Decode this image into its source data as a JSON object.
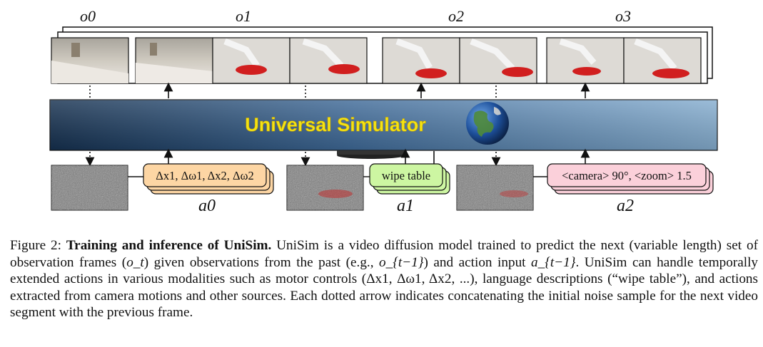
{
  "figure": {
    "frame_labels": [
      "o0",
      "o1",
      "o2",
      "o3"
    ],
    "simulator_label": "Universal Simulator",
    "action_boxes": {
      "motor": "Δx1, Δω1, Δx2, Δω2",
      "language": "wipe table",
      "camera": "<camera> 90°, <zoom> 1.5"
    },
    "action_labels": [
      "a0",
      "a1",
      "a2"
    ],
    "colors": {
      "simulator_gradient": [
        "#15304f",
        "#3f6a98",
        "#86aed0"
      ],
      "motor_box": "#fdd6a4",
      "language_box": "#cdf6a2",
      "camera_box": "#fbd0da"
    }
  },
  "caption": {
    "label": "Figure 2:",
    "title": "Training and inference of UniSim.",
    "body": [
      "UniSim is a video diffusion model trained to predict the next (variable length) set of observation frames (",
      "o_t",
      ") given observations from the past (e.g., ",
      "o_{t−1}",
      ") and action input ",
      "a_{t−1}",
      ". UniSim can handle temporally extended actions in various modalities such as motor controls (",
      "Δx1, Δω1, Δx2, ...",
      "), language descriptions (“wipe table”), and actions extracted from camera motions and other sources. Each dotted arrow indicates concatenating the initial noise sample for the next video segment with the previous frame."
    ]
  }
}
